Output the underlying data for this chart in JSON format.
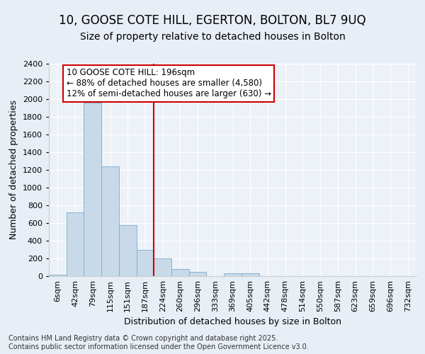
{
  "title_line1": "10, GOOSE COTE HILL, EGERTON, BOLTON, BL7 9UQ",
  "title_line2": "Size of property relative to detached houses in Bolton",
  "xlabel": "Distribution of detached houses by size in Bolton",
  "ylabel": "Number of detached properties",
  "categories": [
    "6sqm",
    "42sqm",
    "79sqm",
    "115sqm",
    "151sqm",
    "187sqm",
    "224sqm",
    "260sqm",
    "296sqm",
    "333sqm",
    "369sqm",
    "405sqm",
    "442sqm",
    "478sqm",
    "514sqm",
    "550sqm",
    "587sqm",
    "623sqm",
    "659sqm",
    "696sqm",
    "732sqm"
  ],
  "values": [
    20,
    720,
    1960,
    1240,
    575,
    300,
    200,
    80,
    45,
    0,
    30,
    30,
    0,
    0,
    0,
    0,
    0,
    0,
    0,
    0,
    0
  ],
  "bar_color": "#c8daea",
  "bar_edge_color": "#7aaac8",
  "vline_x_index": 5,
  "vline_color": "#cc0000",
  "annotation_text": "10 GOOSE COTE HILL: 196sqm\n← 88% of detached houses are smaller (4,580)\n12% of semi-detached houses are larger (630) →",
  "annotation_box_color": "#ffffff",
  "annotation_box_edge_color": "#cc0000",
  "ylim": [
    0,
    2400
  ],
  "yticks": [
    0,
    200,
    400,
    600,
    800,
    1000,
    1200,
    1400,
    1600,
    1800,
    2000,
    2200,
    2400
  ],
  "footnote": "Contains HM Land Registry data © Crown copyright and database right 2025.\nContains public sector information licensed under the Open Government Licence v3.0.",
  "bg_color": "#e8eef5",
  "plot_bg_color": "#edf2f8",
  "title_fontsize": 12,
  "subtitle_fontsize": 10,
  "axis_label_fontsize": 9,
  "tick_fontsize": 8,
  "annotation_fontsize": 8.5,
  "footnote_fontsize": 7
}
